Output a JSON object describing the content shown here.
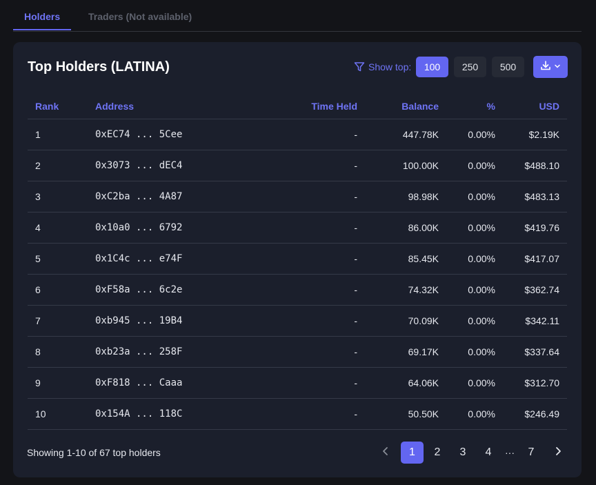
{
  "tabs": {
    "holders": "Holders",
    "traders": "Traders (Not available)"
  },
  "card": {
    "title": "Top Holders (LATINA)",
    "show_top_label": "Show top:",
    "show_top_options": [
      "100",
      "250",
      "500"
    ],
    "show_top_selected": "100",
    "download_icon": "download-icon",
    "filter_icon": "filter-icon"
  },
  "table": {
    "headers": {
      "rank": "Rank",
      "address": "Address",
      "time_held": "Time Held",
      "balance": "Balance",
      "pct": "%",
      "usd": "USD"
    },
    "rows": [
      {
        "rank": "1",
        "address": "0xEC74 ... 5Cee",
        "time_held": "-",
        "balance": "447.78K",
        "pct": "0.00%",
        "usd": "$2.19K"
      },
      {
        "rank": "2",
        "address": "0x3073 ... dEC4",
        "time_held": "-",
        "balance": "100.00K",
        "pct": "0.00%",
        "usd": "$488.10"
      },
      {
        "rank": "3",
        "address": "0xC2ba ... 4A87",
        "time_held": "-",
        "balance": "98.98K",
        "pct": "0.00%",
        "usd": "$483.13"
      },
      {
        "rank": "4",
        "address": "0x10a0 ... 6792",
        "time_held": "-",
        "balance": "86.00K",
        "pct": "0.00%",
        "usd": "$419.76"
      },
      {
        "rank": "5",
        "address": "0x1C4c ... e74F",
        "time_held": "-",
        "balance": "85.45K",
        "pct": "0.00%",
        "usd": "$417.07"
      },
      {
        "rank": "6",
        "address": "0xF58a ... 6c2e",
        "time_held": "-",
        "balance": "74.32K",
        "pct": "0.00%",
        "usd": "$362.74"
      },
      {
        "rank": "7",
        "address": "0xb945 ... 19B4",
        "time_held": "-",
        "balance": "70.09K",
        "pct": "0.00%",
        "usd": "$342.11"
      },
      {
        "rank": "8",
        "address": "0xb23a ... 258F",
        "time_held": "-",
        "balance": "69.17K",
        "pct": "0.00%",
        "usd": "$337.64"
      },
      {
        "rank": "9",
        "address": "0xF818 ... Caaa",
        "time_held": "-",
        "balance": "64.06K",
        "pct": "0.00%",
        "usd": "$312.70"
      },
      {
        "rank": "10",
        "address": "0x154A ... 118C",
        "time_held": "-",
        "balance": "50.50K",
        "pct": "0.00%",
        "usd": "$246.49"
      }
    ]
  },
  "footer": {
    "showing": "Showing 1-10 of 67 top holders",
    "pages": [
      "1",
      "2",
      "3",
      "4",
      "7"
    ],
    "ellipsis": "···",
    "current_page": "1"
  },
  "colors": {
    "accent": "#6366f1",
    "background": "#131418",
    "card": "#1b1f2c",
    "muted": "#5d616c"
  }
}
